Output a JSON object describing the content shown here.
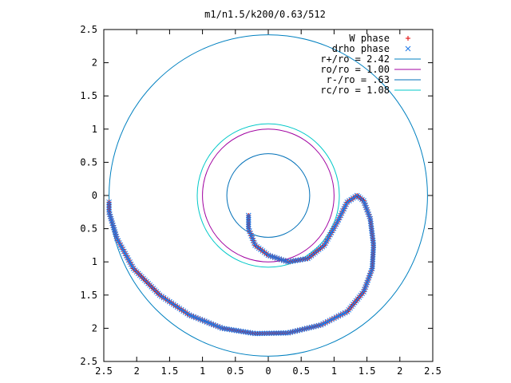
{
  "chart_data": {
    "type": "scatter",
    "title": "m1/n1.5/k200/0.63/512",
    "xlim": [
      -2.5,
      2.5
    ],
    "ylim": [
      -2.5,
      2.5
    ],
    "x_ticks": [
      -2.5,
      -2,
      -1.5,
      -1,
      -0.5,
      0,
      0.5,
      1,
      1.5,
      2,
      2.5
    ],
    "y_ticks": [
      -2.5,
      -2,
      -1.5,
      -1,
      -0.5,
      0,
      0.5,
      1,
      1.5,
      2,
      2.5
    ],
    "x_tick_labels": [
      "2.5",
      "2",
      "1.5",
      "1",
      "0.5",
      "0",
      "0.5",
      "1",
      "1.5",
      "2",
      "2.5"
    ],
    "y_tick_labels": [
      "2.5",
      "2",
      "1.5",
      "1",
      "0.5",
      "0",
      "0.5",
      "1",
      "1.5",
      "2",
      "2.5"
    ],
    "grid": false,
    "legend_position": "top-right",
    "circles": [
      {
        "name": "r+/ro = 2.42",
        "radius": 2.42,
        "color": "#0080c0"
      },
      {
        "name": "ro/ro = 1.00",
        "radius": 1.0,
        "color": "#a000a0"
      },
      {
        "name": "r-/ro = .63",
        "radius": 0.63,
        "color": "#0070b8"
      },
      {
        "name": "rc/ro = 1.08",
        "radius": 1.08,
        "color": "#00c8c8"
      }
    ],
    "series": [
      {
        "name": "W phase",
        "marker": "plus",
        "color": "#e00000",
        "points": [
          [
            -0.3,
            -0.3
          ],
          [
            -0.3,
            -0.5
          ],
          [
            -0.2,
            -0.75
          ],
          [
            0.0,
            -0.9
          ],
          [
            0.3,
            -1.0
          ],
          [
            0.6,
            -0.95
          ],
          [
            0.85,
            -0.75
          ],
          [
            1.05,
            -0.4
          ],
          [
            1.2,
            -0.1
          ],
          [
            1.35,
            0.0
          ],
          [
            1.45,
            -0.08
          ],
          [
            1.55,
            -0.35
          ],
          [
            1.6,
            -0.75
          ],
          [
            1.58,
            -1.1
          ],
          [
            1.45,
            -1.45
          ],
          [
            1.2,
            -1.75
          ],
          [
            0.8,
            -1.95
          ],
          [
            0.3,
            -2.07
          ],
          [
            -0.2,
            -2.08
          ],
          [
            -0.7,
            -2.0
          ],
          [
            -1.2,
            -1.8
          ],
          [
            -1.65,
            -1.5
          ],
          [
            -2.05,
            -1.1
          ],
          [
            -2.3,
            -0.65
          ],
          [
            -2.42,
            -0.25
          ],
          [
            -2.42,
            -0.1
          ]
        ]
      },
      {
        "name": "drho phase",
        "marker": "cross",
        "color": "#1e78e6",
        "points": [
          [
            -0.3,
            -0.3
          ],
          [
            -0.3,
            -0.5
          ],
          [
            -0.2,
            -0.75
          ],
          [
            0.0,
            -0.9
          ],
          [
            0.3,
            -1.0
          ],
          [
            0.6,
            -0.95
          ],
          [
            0.85,
            -0.75
          ],
          [
            1.05,
            -0.4
          ],
          [
            1.2,
            -0.1
          ],
          [
            1.35,
            0.0
          ],
          [
            1.45,
            -0.08
          ],
          [
            1.55,
            -0.35
          ],
          [
            1.6,
            -0.75
          ],
          [
            1.58,
            -1.1
          ],
          [
            1.45,
            -1.45
          ],
          [
            1.2,
            -1.75
          ],
          [
            0.8,
            -1.95
          ],
          [
            0.3,
            -2.07
          ],
          [
            -0.2,
            -2.08
          ],
          [
            -0.7,
            -2.0
          ],
          [
            -1.2,
            -1.8
          ],
          [
            -1.65,
            -1.5
          ],
          [
            -2.05,
            -1.1
          ],
          [
            -2.3,
            -0.65
          ],
          [
            -2.42,
            -0.25
          ],
          [
            -2.42,
            -0.1
          ]
        ]
      }
    ]
  }
}
